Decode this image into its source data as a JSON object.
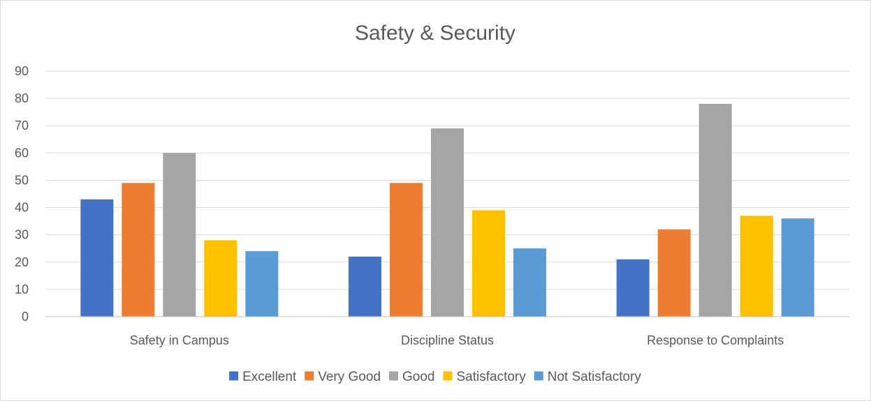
{
  "chart_data": {
    "type": "bar",
    "title": "Safety & Security",
    "xlabel": "",
    "ylabel": "",
    "ylim": [
      0,
      90
    ],
    "yticks": [
      0,
      10,
      20,
      30,
      40,
      50,
      60,
      70,
      80,
      90
    ],
    "grid": true,
    "legend_position": "bottom",
    "categories": [
      "Safety in Campus",
      "Discipline Status",
      "Response to Complaints"
    ],
    "series": [
      {
        "name": "Excellent",
        "color": "#4472c4",
        "values": [
          43,
          22,
          21
        ]
      },
      {
        "name": "Very Good",
        "color": "#ed7d31",
        "values": [
          49,
          49,
          32
        ]
      },
      {
        "name": "Good",
        "color": "#a5a5a5",
        "values": [
          60,
          69,
          78
        ]
      },
      {
        "name": "Satisfactory",
        "color": "#ffc000",
        "values": [
          28,
          39,
          37
        ]
      },
      {
        "name": "Not Satisfactory",
        "color": "#5b9bd5",
        "values": [
          24,
          25,
          36
        ]
      }
    ]
  }
}
